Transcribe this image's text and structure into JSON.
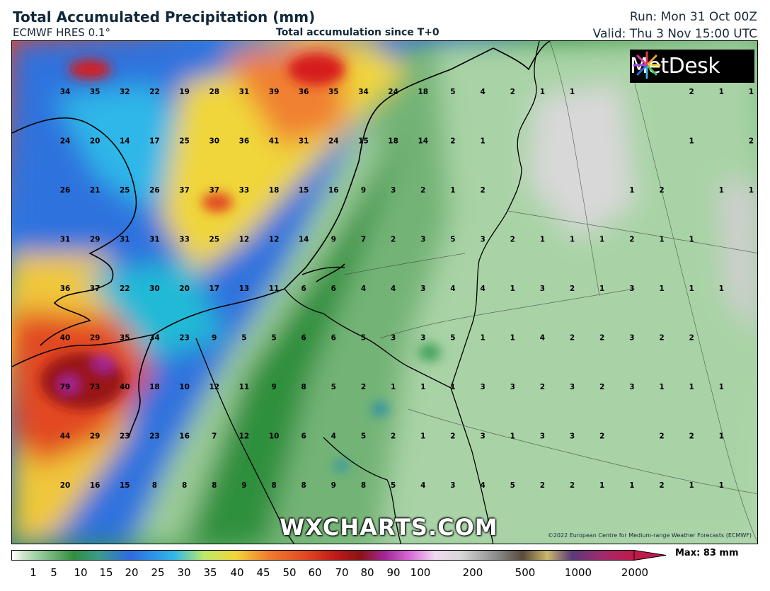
{
  "header": {
    "title": "Total Accumulated Precipitation (mm)",
    "model": "ECMWF HRES 0.1°",
    "subtitle": "Total accumulation since T+0",
    "run": "Run: Mon 31 Oct 00Z",
    "valid": "Valid: Thu 3 Nov 15:00 UTC"
  },
  "logo": {
    "text": "MetDesk",
    "icon": "metdesk-burst-icon"
  },
  "watermark": "WXCHARTS.COM",
  "copyright": "©2022 European Centre for Medium-range Weather Forecasts (ECMWF)",
  "legend": {
    "max_label": "Max: 83 mm",
    "ticks": [
      "1",
      "5",
      "10",
      "15",
      "20",
      "25",
      "30",
      "35",
      "40",
      "45",
      "50",
      "60",
      "70",
      "80",
      "90",
      "100",
      "200",
      "500",
      "1000",
      "2000"
    ]
  },
  "colors": {
    "heavy": "#d61f1f",
    "high": "#f0d63a",
    "moderate": "#2a6ae0",
    "light": "#2f8f3e",
    "trace": "#b9d9b5",
    "extreme": "#a3279a"
  },
  "grid_values": {
    "cols": [
      "c1",
      "c2",
      "c3",
      "c4",
      "c5",
      "c6",
      "c7",
      "c8",
      "c9",
      "c10",
      "c11",
      "c12",
      "c13",
      "c14",
      "c15",
      "c16",
      "c17",
      "c18",
      "c19",
      "c20",
      "c21",
      "c22",
      "c23",
      "c24"
    ],
    "rows": [
      [
        "34",
        "35",
        "32",
        "22",
        "19",
        "28",
        "31",
        "39",
        "36",
        "35",
        "34",
        "24",
        "18",
        "5",
        "4",
        "2",
        "1",
        "1",
        "",
        "",
        "",
        "2",
        "1",
        "1"
      ],
      [
        "24",
        "20",
        "14",
        "17",
        "25",
        "30",
        "36",
        "41",
        "31",
        "24",
        "15",
        "18",
        "14",
        "2",
        "1",
        "",
        "",
        "",
        "",
        "",
        "",
        "1",
        "",
        "2"
      ],
      [
        "26",
        "21",
        "25",
        "26",
        "37",
        "37",
        "33",
        "18",
        "15",
        "16",
        "9",
        "3",
        "2",
        "1",
        "2",
        "",
        "",
        "",
        "",
        "1",
        "2",
        "",
        "1",
        "1"
      ],
      [
        "31",
        "29",
        "31",
        "31",
        "33",
        "25",
        "12",
        "12",
        "14",
        "9",
        "7",
        "2",
        "3",
        "5",
        "3",
        "2",
        "1",
        "1",
        "1",
        "2",
        "1",
        "1",
        "",
        ""
      ],
      [
        "36",
        "37",
        "22",
        "30",
        "20",
        "17",
        "13",
        "11",
        "6",
        "6",
        "4",
        "4",
        "3",
        "4",
        "4",
        "1",
        "3",
        "2",
        "1",
        "3",
        "1",
        "1",
        "1",
        ""
      ],
      [
        "40",
        "29",
        "35",
        "34",
        "23",
        "9",
        "5",
        "5",
        "6",
        "6",
        "5",
        "3",
        "3",
        "5",
        "1",
        "1",
        "4",
        "2",
        "2",
        "3",
        "2",
        "2",
        "",
        ""
      ],
      [
        "79",
        "73",
        "40",
        "18",
        "10",
        "12",
        "11",
        "9",
        "8",
        "5",
        "2",
        "1",
        "1",
        "1",
        "3",
        "3",
        "2",
        "3",
        "2",
        "3",
        "1",
        "1",
        "1",
        ""
      ],
      [
        "44",
        "29",
        "23",
        "23",
        "16",
        "7",
        "12",
        "10",
        "6",
        "4",
        "5",
        "2",
        "1",
        "2",
        "3",
        "1",
        "3",
        "3",
        "2",
        "",
        "2",
        "2",
        "1",
        ""
      ],
      [
        "20",
        "16",
        "15",
        "8",
        "8",
        "8",
        "9",
        "8",
        "8",
        "9",
        "8",
        "5",
        "4",
        "3",
        "4",
        "5",
        "2",
        "2",
        "1",
        "1",
        "2",
        "1",
        "1",
        ""
      ]
    ]
  }
}
